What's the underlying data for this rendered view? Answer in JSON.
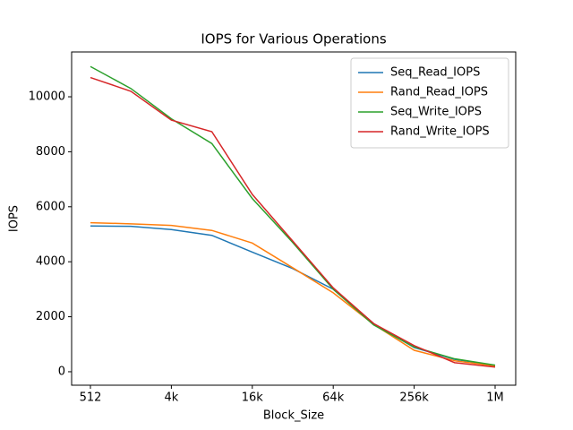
{
  "chart_data": {
    "type": "line",
    "title": "IOPS for Various Operations",
    "xlabel": "Block_Size",
    "ylabel": "IOPS",
    "categories": [
      "512",
      null,
      "4k",
      null,
      "16k",
      null,
      "64k",
      null,
      "256k",
      null,
      "1M"
    ],
    "series": [
      {
        "name": "Seq_Read_IOPS",
        "color": "#1f77b4",
        "values": [
          5300,
          5290,
          5170,
          4960,
          4350,
          3750,
          3000,
          1750,
          880,
          450,
          230
        ]
      },
      {
        "name": "Rand_Read_IOPS",
        "color": "#ff7f0e",
        "values": [
          5420,
          5380,
          5320,
          5140,
          4680,
          3780,
          2870,
          1720,
          780,
          400,
          210
        ]
      },
      {
        "name": "Seq_Write_IOPS",
        "color": "#2ca02c",
        "values": [
          11100,
          10300,
          9200,
          8300,
          6300,
          4700,
          3000,
          1700,
          900,
          470,
          240
        ]
      },
      {
        "name": "Rand_Write_IOPS",
        "color": "#d62728",
        "values": [
          10700,
          10200,
          9150,
          8730,
          6450,
          4750,
          3050,
          1750,
          950,
          330,
          170
        ]
      }
    ],
    "ylim": [
      -490,
      11630
    ],
    "yticks": [
      0,
      2000,
      4000,
      6000,
      8000,
      10000
    ],
    "legend": "upper right"
  }
}
